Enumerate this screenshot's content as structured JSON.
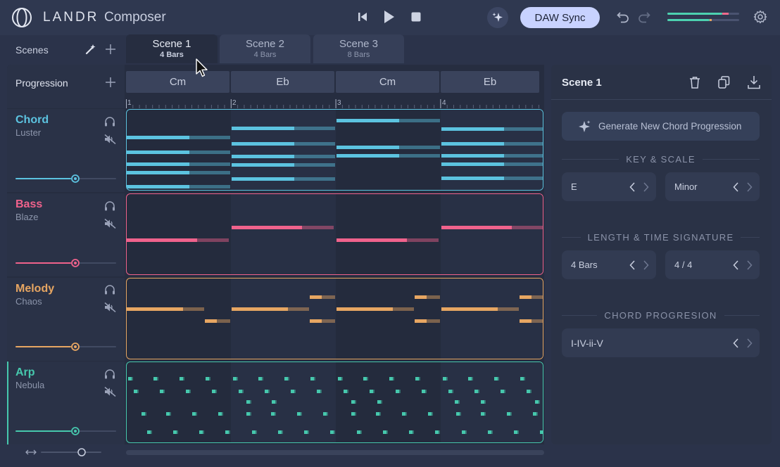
{
  "app": {
    "brand": "LANDR",
    "product": "Composer"
  },
  "header": {
    "daw_sync_label": "DAW Sync"
  },
  "scenes": {
    "label": "Scenes",
    "tabs": [
      {
        "title": "Scene 1",
        "bars": "4 Bars",
        "active": true
      },
      {
        "title": "Scene 2",
        "bars": "4 Bars",
        "active": false
      },
      {
        "title": "Scene 3",
        "bars": "8 Bars",
        "active": false
      }
    ]
  },
  "progression": {
    "label": "Progression",
    "chords": [
      "Cm",
      "Eb",
      "Cm",
      "Eb"
    ],
    "bar_numbers": [
      "1",
      "2",
      "3",
      "4"
    ]
  },
  "tracks": [
    {
      "name": "Chord",
      "preset": "Luster",
      "color": "#5cc3e0",
      "volume": 0.5
    },
    {
      "name": "Bass",
      "preset": "Blaze",
      "color": "#f0628c",
      "volume": 0.5
    },
    {
      "name": "Melody",
      "preset": "Chaos",
      "color": "#e7a662",
      "volume": 0.5
    },
    {
      "name": "Arp",
      "preset": "Nebula",
      "color": "#46c8ad",
      "volume": 0.5
    }
  ],
  "right_panel": {
    "title": "Scene 1",
    "generate_label": "Generate New Chord Progression",
    "key_scale_heading": "KEY & SCALE",
    "key_value": "E",
    "scale_value": "Minor",
    "length_heading": "LENGTH & TIME SIGNATURE",
    "length_value": "4 Bars",
    "time_signature_value": "4 / 4",
    "chord_prog_heading": "CHORD PROGRESION",
    "chord_prog_value": "I-IV-ii-V"
  },
  "colors": {
    "background": "#2b334a",
    "accent": "#c8d2ff"
  }
}
